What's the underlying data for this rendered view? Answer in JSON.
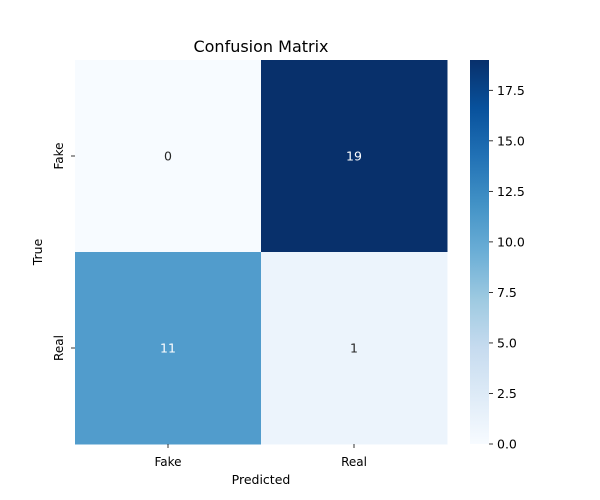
{
  "chart_data": {
    "type": "heatmap",
    "title": "Confusion Matrix",
    "xlabel": "Predicted",
    "ylabel": "True",
    "x_categories": [
      "Fake",
      "Real"
    ],
    "y_categories": [
      "Fake",
      "Real"
    ],
    "values": [
      [
        0,
        19
      ],
      [
        11,
        1
      ]
    ],
    "colormap": "Blues",
    "color_range": [
      0,
      19
    ],
    "colorbar": {
      "ticks": [
        0.0,
        2.5,
        5.0,
        7.5,
        10.0,
        12.5,
        15.0,
        17.5
      ],
      "tick_labels": [
        "0.0",
        "2.5",
        "5.0",
        "7.5",
        "10.0",
        "12.5",
        "15.0",
        "17.5"
      ],
      "placement": "right"
    },
    "annotations": true,
    "grid": false
  }
}
